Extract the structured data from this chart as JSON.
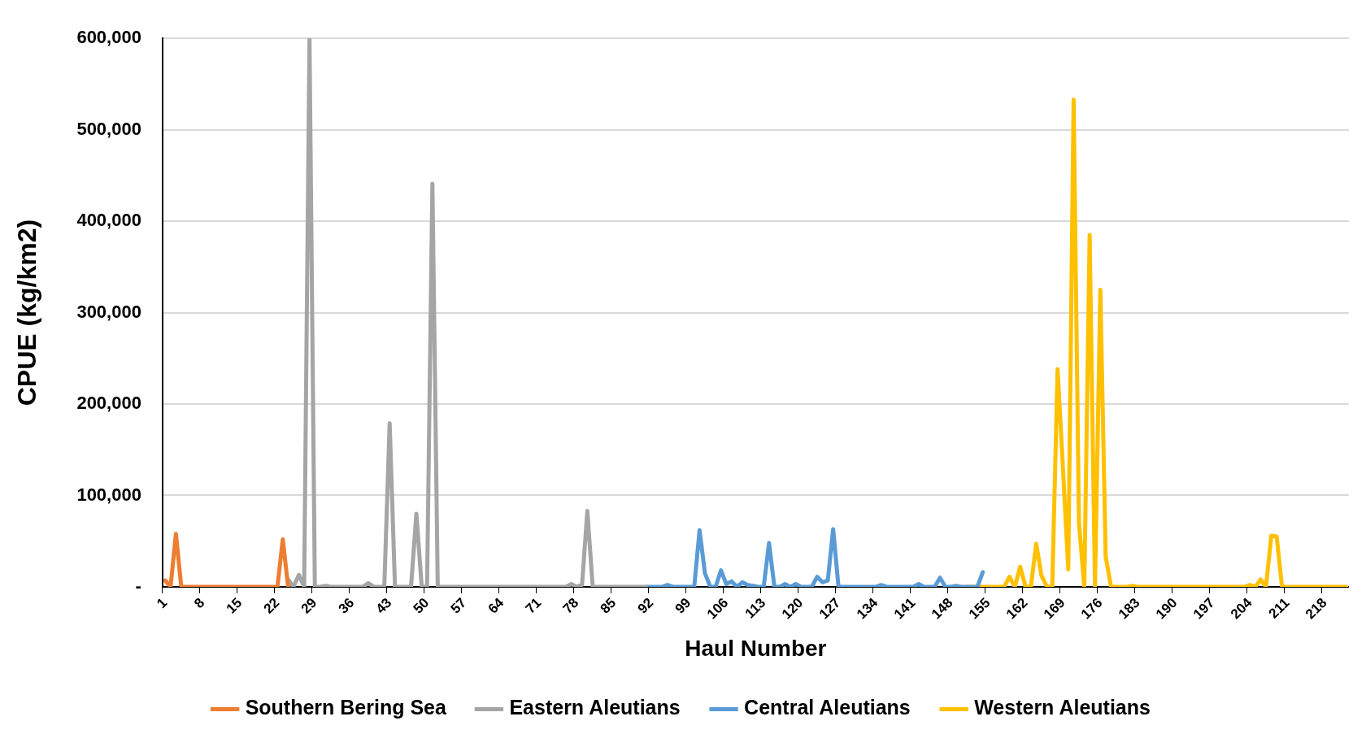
{
  "chart_data": {
    "type": "line",
    "xlabel": "Haul Number",
    "ylabel": "CPUE (kg/km2)",
    "legend": "bottom",
    "grid": "y",
    "marker": "none",
    "line_style": "solid",
    "ylim": [
      0,
      600000
    ],
    "yticks": [
      {
        "value": 0,
        "label": "-"
      },
      {
        "value": 100000,
        "label": "100,000"
      },
      {
        "value": 200000,
        "label": "200,000"
      },
      {
        "value": 300000,
        "label": "300,000"
      },
      {
        "value": 400000,
        "label": "400,000"
      },
      {
        "value": 500000,
        "label": "500,000"
      },
      {
        "value": 600000,
        "label": "600,000"
      }
    ],
    "categories": [
      "1",
      null,
      null,
      null,
      null,
      null,
      null,
      "8",
      null,
      null,
      null,
      null,
      null,
      null,
      "15",
      null,
      null,
      null,
      null,
      null,
      null,
      "22",
      null,
      null,
      null,
      null,
      null,
      null,
      "29",
      null,
      null,
      null,
      null,
      null,
      null,
      "36",
      null,
      null,
      null,
      null,
      null,
      null,
      "43",
      null,
      null,
      null,
      null,
      null,
      null,
      "50",
      null,
      null,
      null,
      null,
      null,
      null,
      "57",
      null,
      null,
      null,
      null,
      null,
      null,
      "64",
      null,
      null,
      null,
      null,
      null,
      null,
      "71",
      null,
      null,
      null,
      null,
      null,
      null,
      "78",
      null,
      null,
      null,
      null,
      null,
      null,
      "85",
      null,
      null,
      null,
      null,
      null,
      null,
      "92",
      null,
      null,
      null,
      null,
      null,
      null,
      "99",
      null,
      null,
      null,
      null,
      null,
      null,
      "106",
      null,
      null,
      null,
      null,
      null,
      null,
      "113",
      null,
      null,
      null,
      null,
      null,
      null,
      "120",
      null,
      null,
      null,
      null,
      null,
      null,
      "127",
      null,
      null,
      null,
      null,
      null,
      null,
      "134",
      null,
      null,
      null,
      null,
      null,
      null,
      "141",
      null,
      null,
      null,
      null,
      null,
      null,
      "148",
      null,
      null,
      null,
      null,
      null,
      null,
      "155",
      null,
      null,
      null,
      null,
      null,
      null,
      "162",
      null,
      null,
      null,
      null,
      null,
      null,
      "169",
      null,
      null,
      null,
      null,
      null,
      null,
      "176",
      null,
      null,
      null,
      null,
      null,
      null,
      "183",
      null,
      null,
      null,
      null,
      null,
      null,
      "190",
      null,
      null,
      null,
      null,
      null,
      null,
      "197",
      null,
      null,
      null,
      null,
      null,
      null,
      "204",
      null,
      null,
      null,
      null,
      null,
      null,
      "211",
      null,
      null,
      null,
      null,
      null,
      null,
      "218",
      null,
      null,
      null,
      null
    ],
    "series": [
      {
        "name": "Southern Bering Sea",
        "color": "#ed7d31",
        "values": [
          7000,
          0,
          58000,
          0,
          0,
          0,
          0,
          0,
          0,
          0,
          0,
          0,
          0,
          0,
          0,
          0,
          0,
          0,
          0,
          0,
          0,
          0,
          52000,
          0,
          null,
          null,
          null,
          null,
          null,
          null,
          null,
          null,
          null,
          null,
          null,
          null,
          null,
          null,
          null,
          null,
          null,
          null,
          null,
          null,
          null,
          null,
          null,
          null,
          null,
          null,
          null,
          null,
          null,
          null,
          null,
          null,
          null,
          null,
          null,
          null,
          null,
          null,
          null,
          null,
          null,
          null,
          null,
          null,
          null,
          null,
          null,
          null,
          null,
          null,
          null,
          null,
          null,
          null,
          null,
          null,
          null,
          null,
          null,
          null,
          null,
          null,
          null,
          null,
          null,
          null,
          null,
          null,
          null,
          null,
          null,
          null,
          null,
          null,
          null,
          null,
          null,
          null,
          null,
          null,
          null,
          null,
          null,
          null,
          null,
          null,
          null,
          null,
          null,
          null,
          null,
          null,
          null,
          null,
          null,
          null,
          null,
          null,
          null,
          null,
          null,
          null,
          null,
          null,
          null,
          null,
          null,
          null,
          null,
          null,
          null,
          null,
          null,
          null,
          null,
          null,
          null,
          null,
          null,
          null,
          null,
          null,
          null,
          null,
          null,
          null,
          null,
          null,
          null,
          null,
          null,
          null,
          null,
          null,
          null,
          null,
          null,
          null,
          null,
          null,
          null,
          null,
          null,
          null,
          null,
          null,
          null,
          null,
          null,
          null,
          null,
          null,
          null,
          null,
          null,
          null,
          null,
          null,
          null,
          null,
          null,
          null,
          null,
          null,
          null,
          null,
          null,
          null,
          null,
          null,
          null,
          null,
          null,
          null,
          null,
          null,
          null,
          null,
          null,
          null,
          null,
          null,
          null,
          null,
          null,
          null,
          null,
          null,
          null,
          null,
          null,
          null,
          null,
          null,
          null,
          null,
          null,
          null
        ]
      },
      {
        "name": "Eastern Aleutians",
        "color": "#a5a5a5",
        "values": [
          null,
          null,
          null,
          null,
          null,
          null,
          null,
          null,
          null,
          null,
          null,
          null,
          null,
          null,
          null,
          null,
          null,
          null,
          null,
          null,
          null,
          null,
          null,
          8000,
          0,
          13000,
          0,
          600000,
          0,
          0,
          1000,
          0,
          0,
          0,
          0,
          0,
          0,
          0,
          4000,
          0,
          0,
          0,
          179000,
          0,
          0,
          0,
          0,
          80000,
          0,
          0,
          441000,
          0,
          0,
          0,
          0,
          0,
          0,
          0,
          0,
          0,
          0,
          0,
          0,
          0,
          0,
          0,
          0,
          0,
          0,
          0,
          0,
          0,
          0,
          0,
          0,
          0,
          3000,
          0,
          2000,
          83000,
          0,
          0,
          0,
          0,
          0,
          0,
          0,
          0,
          0,
          0,
          0,
          null,
          null,
          null,
          null,
          null,
          null,
          null,
          null,
          null,
          null,
          null,
          null,
          null,
          null,
          null,
          null,
          null,
          null,
          null,
          null,
          null,
          null,
          null,
          null,
          null,
          null,
          null,
          null,
          null,
          null,
          null,
          null,
          null,
          null,
          null,
          null,
          null,
          null,
          null,
          null,
          null,
          null,
          null,
          null,
          null,
          null,
          null,
          null,
          null,
          null,
          null,
          null,
          null,
          null,
          null,
          null,
          null,
          null,
          null,
          null,
          null,
          null,
          null,
          null,
          null,
          null,
          null,
          null,
          null,
          null,
          null,
          null,
          null,
          null,
          null,
          null,
          null,
          null,
          null,
          null,
          null,
          null,
          null,
          null,
          null,
          null,
          null,
          null,
          null,
          null,
          null,
          null,
          null,
          null,
          null,
          null,
          null,
          null,
          null,
          null,
          null,
          null,
          null,
          null,
          null,
          null,
          null,
          null,
          null,
          null,
          null,
          null,
          null,
          null,
          null,
          null,
          null,
          null,
          null,
          null,
          null,
          null,
          null,
          null,
          null,
          null,
          null,
          null,
          null,
          null,
          null
        ]
      },
      {
        "name": "Central Aleutians",
        "color": "#5b9bd5",
        "values": [
          null,
          null,
          null,
          null,
          null,
          null,
          null,
          null,
          null,
          null,
          null,
          null,
          null,
          null,
          null,
          null,
          null,
          null,
          null,
          null,
          null,
          null,
          null,
          null,
          null,
          null,
          null,
          null,
          null,
          null,
          null,
          null,
          null,
          null,
          null,
          null,
          null,
          null,
          null,
          null,
          null,
          null,
          null,
          null,
          null,
          null,
          null,
          null,
          null,
          null,
          null,
          null,
          null,
          null,
          null,
          null,
          null,
          null,
          null,
          null,
          null,
          null,
          null,
          null,
          null,
          null,
          null,
          null,
          null,
          null,
          null,
          null,
          null,
          null,
          null,
          null,
          null,
          null,
          null,
          null,
          null,
          null,
          null,
          null,
          null,
          null,
          null,
          null,
          null,
          null,
          0,
          0,
          0,
          0,
          2000,
          0,
          0,
          0,
          0,
          0,
          62000,
          15000,
          0,
          0,
          18000,
          3000,
          6000,
          0,
          5000,
          2000,
          1000,
          0,
          0,
          48000,
          0,
          0,
          3000,
          0,
          3000,
          0,
          0,
          0,
          11000,
          5000,
          7000,
          63000,
          0,
          0,
          0,
          0,
          0,
          0,
          0,
          0,
          2000,
          0,
          0,
          0,
          0,
          0,
          0,
          3000,
          0,
          0,
          0,
          10000,
          0,
          0,
          1000,
          0,
          0,
          0,
          0,
          16000,
          null,
          null,
          null,
          null,
          null,
          null,
          null,
          null,
          null,
          null,
          null,
          null,
          null,
          null,
          null,
          null,
          null,
          null,
          null,
          null,
          null,
          null,
          null,
          null,
          null,
          null,
          null,
          null,
          null,
          null,
          null,
          null,
          null,
          null,
          null,
          null,
          null,
          null,
          null,
          null,
          null,
          null,
          null,
          null,
          null,
          null,
          null,
          null,
          null,
          null,
          null,
          null,
          null,
          null,
          null,
          null,
          null,
          null,
          null,
          null,
          null,
          null,
          null,
          null,
          null,
          null,
          null,
          null
        ]
      },
      {
        "name": "Western Aleutians",
        "color": "#ffc000",
        "values": [
          null,
          null,
          null,
          null,
          null,
          null,
          null,
          null,
          null,
          null,
          null,
          null,
          null,
          null,
          null,
          null,
          null,
          null,
          null,
          null,
          null,
          null,
          null,
          null,
          null,
          null,
          null,
          null,
          null,
          null,
          null,
          null,
          null,
          null,
          null,
          null,
          null,
          null,
          null,
          null,
          null,
          null,
          null,
          null,
          null,
          null,
          null,
          null,
          null,
          null,
          null,
          null,
          null,
          null,
          null,
          null,
          null,
          null,
          null,
          null,
          null,
          null,
          null,
          null,
          null,
          null,
          null,
          null,
          null,
          null,
          null,
          null,
          null,
          null,
          null,
          null,
          null,
          null,
          null,
          null,
          null,
          null,
          null,
          null,
          null,
          null,
          null,
          null,
          null,
          null,
          null,
          null,
          null,
          null,
          null,
          null,
          null,
          null,
          null,
          null,
          null,
          null,
          null,
          null,
          null,
          null,
          null,
          null,
          null,
          null,
          null,
          null,
          null,
          null,
          null,
          null,
          null,
          null,
          null,
          null,
          null,
          null,
          null,
          null,
          null,
          null,
          null,
          null,
          null,
          null,
          null,
          null,
          null,
          null,
          null,
          null,
          null,
          null,
          null,
          null,
          null,
          null,
          null,
          null,
          null,
          null,
          null,
          null,
          null,
          null,
          0,
          0,
          0,
          0,
          0,
          0,
          0,
          0,
          11000,
          0,
          22000,
          0,
          0,
          47000,
          12000,
          0,
          0,
          238000,
          130000,
          19000,
          533000,
          70000,
          0,
          385000,
          0,
          325000,
          33000,
          0,
          0,
          0,
          0,
          1000,
          0,
          0,
          0,
          0,
          0,
          0,
          0,
          0,
          0,
          0,
          0,
          0,
          0,
          0,
          0,
          0,
          0,
          0,
          0,
          0,
          0,
          2000,
          0,
          8000,
          0,
          56000,
          55000,
          0,
          0,
          0,
          0,
          0,
          0,
          0,
          0,
          0,
          0,
          0,
          0,
          0
        ]
      }
    ]
  }
}
